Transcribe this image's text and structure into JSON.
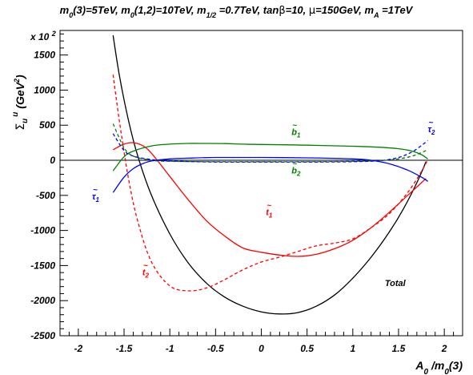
{
  "chart_data": {
    "type": "line",
    "title": "m0(3)=5TeV, m0(1,2)=10TeV, m1/2 =0.7TeV, tanβ=10, μ=150GeV, mA =1TeV",
    "title_parts": [
      {
        "t": "m",
        "s": "n"
      },
      {
        "t": "0",
        "s": "sub"
      },
      {
        "t": "(3)=5TeV, m",
        "s": "n"
      },
      {
        "t": "0",
        "s": "sub"
      },
      {
        "t": "(1,2)=10TeV, m",
        "s": "n"
      },
      {
        "t": "1/2",
        "s": "sub"
      },
      {
        "t": " =0.7TeV, tan",
        "s": "n"
      },
      {
        "t": "β",
        "s": "greek"
      },
      {
        "t": "=10, ",
        "s": "n"
      },
      {
        "t": "μ",
        "s": "greek"
      },
      {
        "t": "=150GeV, m",
        "s": "n"
      },
      {
        "t": "A",
        "s": "sub"
      },
      {
        "t": " =1TeV",
        "s": "n"
      }
    ],
    "xlabel": "A0 /m0(3)",
    "xlabel_parts": [
      {
        "t": "A",
        "s": "n"
      },
      {
        "t": "0",
        "s": "sub"
      },
      {
        "t": " /m",
        "s": "n"
      },
      {
        "t": "0",
        "s": "sub"
      },
      {
        "t": "(3)",
        "s": "n"
      }
    ],
    "ylabel": "Σu u (GeV2)",
    "yscale_note": "x 10",
    "yscale_exp": "2",
    "xlim": [
      -2.2,
      2.2
    ],
    "ylim": [
      -2500,
      1850
    ],
    "x_ticks": [
      -2,
      -1.5,
      -1,
      -0.5,
      0,
      0.5,
      1,
      1.5,
      2
    ],
    "x_tick_labels": [
      "-2",
      "-1.5",
      "-1",
      "-0.5",
      "0",
      "0.5",
      "1",
      "1.5",
      "2"
    ],
    "y_ticks": [
      -2500,
      -2000,
      -1500,
      -1000,
      -500,
      0,
      500,
      1000,
      1500
    ],
    "y_tick_labels": [
      "-2500",
      "-2000",
      "-1500",
      "-1000",
      "-500",
      "0",
      "500",
      "1000",
      "1500"
    ],
    "zero_line": true,
    "grid": false,
    "series": [
      {
        "name": "Total",
        "color": "#000000",
        "dash": "solid",
        "x": [
          -1.62,
          -1.55,
          -1.45,
          -1.35,
          -1.2,
          -1.0,
          -0.8,
          -0.6,
          -0.4,
          -0.2,
          0.0,
          0.2,
          0.4,
          0.6,
          0.8,
          1.0,
          1.2,
          1.4,
          1.55,
          1.7,
          1.8
        ],
        "y": [
          1780,
          1200,
          560,
          60,
          -500,
          -1050,
          -1460,
          -1750,
          -1950,
          -2080,
          -2160,
          -2190,
          -2170,
          -2080,
          -1920,
          -1680,
          -1380,
          -1020,
          -700,
          -320,
          -20
        ]
      },
      {
        "name": "t1",
        "color": "#ff0000",
        "dash": "solid",
        "x": [
          -1.62,
          -1.5,
          -1.4,
          -1.3,
          -1.2,
          -1.0,
          -0.8,
          -0.6,
          -0.4,
          -0.2,
          0.0,
          0.2,
          0.4,
          0.6,
          0.8,
          1.0,
          1.2,
          1.4,
          1.6,
          1.8
        ],
        "y": [
          150,
          230,
          250,
          210,
          100,
          -230,
          -560,
          -860,
          -1080,
          -1250,
          -1310,
          -1350,
          -1370,
          -1340,
          -1260,
          -1140,
          -960,
          -740,
          -500,
          -260
        ]
      },
      {
        "name": "t2",
        "color": "#ff0000",
        "dash": "dashed",
        "x": [
          -1.62,
          -1.55,
          -1.45,
          -1.35,
          -1.2,
          -1.0,
          -0.8,
          -0.6,
          -0.4,
          -0.2,
          0.0,
          0.2,
          0.4,
          0.6,
          0.8,
          1.0,
          1.2,
          1.4,
          1.6,
          1.75,
          1.82
        ],
        "y": [
          1220,
          550,
          -270,
          -870,
          -1450,
          -1790,
          -1860,
          -1820,
          -1700,
          -1560,
          -1450,
          -1380,
          -1300,
          -1220,
          -1180,
          -1120,
          -960,
          -760,
          -460,
          -160,
          10
        ]
      },
      {
        "name": "b1",
        "color": "#008000",
        "dash": "solid",
        "x": [
          -1.62,
          -1.5,
          -1.4,
          -1.2,
          -1.0,
          -0.8,
          -0.6,
          -0.4,
          -0.2,
          0.0,
          0.5,
          1.0,
          1.3,
          1.5,
          1.65,
          1.75,
          1.82
        ],
        "y": [
          -150,
          50,
          130,
          205,
          230,
          240,
          240,
          238,
          230,
          225,
          215,
          200,
          185,
          165,
          130,
          80,
          20
        ]
      },
      {
        "name": "b2",
        "color": "#008000",
        "dash": "dashed",
        "x": [
          -1.62,
          -1.5,
          -1.4,
          -1.2,
          -1.0,
          -0.5,
          0.0,
          0.5,
          1.0,
          1.3,
          1.5,
          1.65,
          1.75,
          1.82
        ],
        "y": [
          520,
          180,
          60,
          0,
          -15,
          -20,
          -20,
          -20,
          -15,
          -5,
          20,
          60,
          110,
          150
        ]
      },
      {
        "name": "tau1",
        "color": "#0000ff",
        "dash": "solid",
        "x": [
          -1.62,
          -1.5,
          -1.4,
          -1.3,
          -1.2,
          -1.0,
          -0.8,
          -0.5,
          0.0,
          0.5,
          1.0,
          1.2,
          1.4,
          1.6,
          1.75,
          1.82
        ],
        "y": [
          -460,
          -240,
          -120,
          -50,
          -10,
          20,
          30,
          40,
          40,
          35,
          20,
          0,
          -50,
          -140,
          -240,
          -300
        ]
      },
      {
        "name": "tau2",
        "color": "#0000ff",
        "dash": "dashed",
        "x": [
          -1.62,
          -1.5,
          -1.4,
          -1.2,
          -1.0,
          -0.5,
          0.0,
          0.5,
          1.0,
          1.3,
          1.5,
          1.65,
          1.75,
          1.82
        ],
        "y": [
          380,
          140,
          60,
          10,
          -10,
          -25,
          -25,
          -25,
          -20,
          -5,
          40,
          120,
          210,
          280
        ]
      }
    ],
    "annotations": [
      {
        "series": "t1",
        "base": "t",
        "sub": "1",
        "x": 0.05,
        "y": -780,
        "color": "#ff0000"
      },
      {
        "series": "t2",
        "base": "t",
        "sub": "2",
        "x": -1.3,
        "y": -1640,
        "color": "#ff0000"
      },
      {
        "series": "b1",
        "base": "b",
        "sub": "1",
        "x": 0.33,
        "y": 360,
        "color": "#008000"
      },
      {
        "series": "b2",
        "base": "b",
        "sub": "2",
        "x": 0.33,
        "y": -190,
        "color": "#008000"
      },
      {
        "series": "tau1",
        "base": "τ",
        "sub": "1",
        "x": -1.85,
        "y": -560,
        "color": "#0000ff"
      },
      {
        "series": "tau2",
        "base": "τ",
        "sub": "2",
        "x": 1.82,
        "y": 400,
        "color": "#0000ff"
      },
      {
        "series": "Total",
        "base": "Total",
        "sub": "",
        "x": 1.35,
        "y": -1790,
        "color": "#000000"
      }
    ]
  }
}
